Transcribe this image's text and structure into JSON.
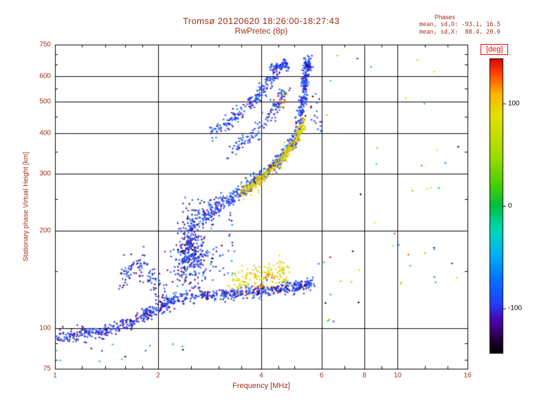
{
  "chart_data": {
    "type": "scatter",
    "title": "Tromsø 20120620 18:26:00-18:27:43",
    "subtitle": "RwPretec (8p)",
    "xlabel": "Frequency [MHz]",
    "ylabel": "Stationary phase Virtual Height [km]",
    "x_scale": "log",
    "y_scale": "log",
    "xlim": [
      1,
      16
    ],
    "ylim": [
      75,
      750
    ],
    "x_ticks": [
      1,
      2,
      4,
      6,
      8,
      10,
      16
    ],
    "y_ticks": [
      75,
      100,
      200,
      300,
      400,
      500,
      600,
      750
    ],
    "x_minor": [
      1.2,
      1.4,
      1.6,
      1.8,
      2.5,
      3,
      3.5,
      4.5,
      5,
      7,
      9,
      12,
      14
    ],
    "y_minor": [
      80,
      90,
      150,
      250,
      350,
      450,
      550,
      650,
      700
    ],
    "x_grid": [
      2,
      4,
      6,
      8,
      10
    ],
    "y_grid": [
      100,
      200,
      300,
      400,
      500,
      600
    ],
    "annotations": {
      "heading": "Phases",
      "o_stats": "mean, sd,O: -93.1, 16.5",
      "x_stats": "mean, sd,X:  88.4, 20.0"
    },
    "colorbar": {
      "label": "[deg]",
      "range": [
        -144,
        144
      ],
      "ticks": [
        100,
        0,
        -100
      ],
      "colormap": [
        [
          0.0,
          "#000000"
        ],
        [
          0.05,
          "#24003c"
        ],
        [
          0.11,
          "#4c00b0"
        ],
        [
          0.17,
          "#2040ff"
        ],
        [
          0.26,
          "#0078ff"
        ],
        [
          0.34,
          "#00b4f0"
        ],
        [
          0.42,
          "#00d8b4"
        ],
        [
          0.5,
          "#00c040"
        ],
        [
          0.58,
          "#50d000"
        ],
        [
          0.66,
          "#96dc00"
        ],
        [
          0.74,
          "#c8dc00"
        ],
        [
          0.81,
          "#e4e000"
        ],
        [
          0.88,
          "#ffb400"
        ],
        [
          0.94,
          "#ff5000"
        ],
        [
          1.0,
          "#e00000"
        ]
      ]
    },
    "style": {
      "text_color": "#a03018",
      "frame_color": "#000000",
      "deg_color": "#ff0000",
      "background": "#ffffff"
    },
    "series": [
      {
        "name": "es-trace-left",
        "kind": "trace",
        "path": [
          [
            1.0,
            94
          ],
          [
            1.15,
            95
          ],
          [
            1.3,
            97
          ],
          [
            1.5,
            100
          ],
          [
            1.7,
            105
          ],
          [
            1.9,
            111
          ],
          [
            2.1,
            118
          ],
          [
            2.25,
            123
          ]
        ],
        "n": 380,
        "phase": -100,
        "phase_sd": 16,
        "spread_x": 0.005,
        "spread_y": 0.01
      },
      {
        "name": "es-trace-right",
        "kind": "trace",
        "path": [
          [
            2.25,
            124
          ],
          [
            2.7,
            126
          ],
          [
            3.2,
            128
          ],
          [
            3.7,
            129
          ],
          [
            4.2,
            131
          ],
          [
            4.7,
            133
          ],
          [
            5.2,
            135
          ],
          [
            5.65,
            138
          ]
        ],
        "n": 430,
        "phase": -100,
        "phase_sd": 16,
        "spread_x": 0.005,
        "spread_y": 0.009
      },
      {
        "name": "es-x-patch",
        "kind": "trace",
        "path": [
          [
            3.3,
            138
          ],
          [
            3.6,
            141
          ],
          [
            3.9,
            143
          ],
          [
            4.2,
            144
          ],
          [
            4.5,
            146
          ],
          [
            4.75,
            148
          ]
        ],
        "n": 170,
        "phase": 88,
        "phase_sd": 18,
        "spread_x": 0.008,
        "spread_y": 0.02
      },
      {
        "name": "left-blob",
        "kind": "trace",
        "path": [
          [
            1.52,
            140
          ],
          [
            1.6,
            147
          ],
          [
            1.68,
            153
          ],
          [
            1.76,
            158
          ],
          [
            1.84,
            152
          ],
          [
            1.92,
            143
          ],
          [
            2.0,
            134
          ],
          [
            2.1,
            127
          ]
        ],
        "n": 110,
        "phase": -100,
        "phase_sd": 16,
        "spread_x": 0.009,
        "spread_y": 0.022
      },
      {
        "name": "mid-cloud",
        "kind": "trace",
        "path": [
          [
            2.33,
            148
          ],
          [
            2.38,
            162
          ],
          [
            2.43,
            176
          ],
          [
            2.48,
            192
          ],
          [
            2.53,
            180
          ],
          [
            2.58,
            164
          ],
          [
            2.63,
            152
          ]
        ],
        "n": 330,
        "phase": -98,
        "phase_sd": 18,
        "spread_x": 0.016,
        "spread_y": 0.045
      },
      {
        "name": "mid-scatter",
        "kind": "random",
        "n": 90,
        "f_range": [
          2.35,
          3.35
        ],
        "h_range": [
          145,
          255
        ],
        "phase": -96,
        "phase_sd": 26
      },
      {
        "name": "f-trace-o",
        "kind": "trace",
        "path": [
          [
            2.45,
            203
          ],
          [
            2.75,
            222
          ],
          [
            3.05,
            240
          ],
          [
            3.35,
            257
          ],
          [
            3.65,
            272
          ],
          [
            3.95,
            290
          ],
          [
            4.25,
            310
          ],
          [
            4.55,
            334
          ],
          [
            4.85,
            362
          ],
          [
            5.05,
            392
          ]
        ],
        "n": 470,
        "phase": -94,
        "phase_sd": 14,
        "spread_x": 0.006,
        "spread_y": 0.011
      },
      {
        "name": "f-trace-o-steep",
        "kind": "trace",
        "path": [
          [
            5.1,
            400
          ],
          [
            5.2,
            445
          ],
          [
            5.28,
            495
          ],
          [
            5.34,
            545
          ],
          [
            5.4,
            595
          ],
          [
            5.45,
            645
          ],
          [
            5.5,
            665
          ]
        ],
        "n": 280,
        "phase": -94,
        "phase_sd": 14,
        "spread_x": 0.006,
        "spread_y": 0.013
      },
      {
        "name": "f-trace-x",
        "kind": "trace",
        "path": [
          [
            3.5,
            260
          ],
          [
            3.8,
            277
          ],
          [
            4.1,
            295
          ],
          [
            4.4,
            316
          ],
          [
            4.7,
            342
          ],
          [
            4.95,
            370
          ],
          [
            5.15,
            400
          ],
          [
            5.3,
            435
          ]
        ],
        "n": 320,
        "phase": 88,
        "phase_sd": 15,
        "spread_x": 0.005,
        "spread_y": 0.01
      },
      {
        "name": "upper-arc-1",
        "kind": "trace",
        "path": [
          [
            2.85,
            398
          ],
          [
            3.1,
            422
          ],
          [
            3.35,
            450
          ],
          [
            3.6,
            480
          ],
          [
            3.85,
            512
          ],
          [
            4.1,
            548
          ],
          [
            4.3,
            588
          ],
          [
            4.45,
            625
          ]
        ],
        "n": 190,
        "phase": -94,
        "phase_sd": 16,
        "spread_x": 0.007,
        "spread_y": 0.011
      },
      {
        "name": "upper-arc-2",
        "kind": "trace",
        "path": [
          [
            3.2,
            342
          ],
          [
            3.5,
            368
          ],
          [
            3.8,
            398
          ],
          [
            4.1,
            432
          ],
          [
            4.35,
            468
          ],
          [
            4.55,
            505
          ],
          [
            4.7,
            545
          ]
        ],
        "n": 130,
        "phase": -94,
        "phase_sd": 16,
        "spread_x": 0.007,
        "spread_y": 0.011
      },
      {
        "name": "top-cluster",
        "kind": "trace",
        "path": [
          [
            4.35,
            635
          ],
          [
            4.5,
            648
          ],
          [
            4.65,
            655
          ],
          [
            4.75,
            650
          ]
        ],
        "n": 70,
        "phase": -94,
        "phase_sd": 15,
        "spread_x": 0.008,
        "spread_y": 0.008
      },
      {
        "name": "upper-x-sparse",
        "kind": "random",
        "n": 14,
        "f_range": [
          4.2,
          4.8
        ],
        "h_range": [
          470,
          540
        ],
        "phase": 95,
        "phase_sd": 40
      },
      {
        "name": "right-of-cusp",
        "kind": "random",
        "n": 18,
        "f_range": [
          5.5,
          6.1
        ],
        "h_range": [
          400,
          540
        ],
        "phase": -95,
        "phase_sd": 25
      },
      {
        "name": "low-sparse",
        "kind": "random",
        "n": 14,
        "f_range": [
          1.0,
          2.7
        ],
        "h_range": [
          79,
          92
        ],
        "phase": -100,
        "phase_sd": 70
      },
      {
        "name": "outliers",
        "kind": "random",
        "n": 48,
        "f_range": [
          5.8,
          15.5
        ],
        "h_range": [
          85,
          700
        ],
        "phase": 0,
        "phase_sd": 110
      }
    ]
  }
}
